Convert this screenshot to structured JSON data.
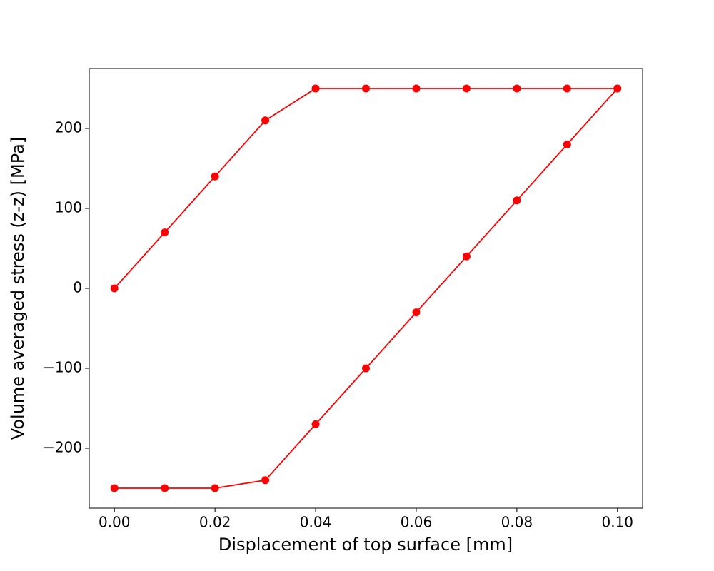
{
  "chart_data": {
    "type": "line",
    "xlabel": "Displacement of top surface [mm]",
    "ylabel": "Volume averaged stress (z-z) [MPa]",
    "x": [
      0,
      0.01,
      0.02,
      0.03,
      0.04,
      0.05,
      0.06,
      0.07,
      0.08,
      0.09,
      0.1,
      0.09,
      0.08,
      0.07,
      0.06,
      0.05,
      0.04,
      0.03,
      0.02,
      0.01,
      0
    ],
    "values": [
      0,
      70,
      140,
      210,
      250,
      250,
      250,
      250,
      250,
      250,
      250,
      180,
      110,
      40,
      -30,
      -100,
      -170,
      -240,
      -250,
      -250,
      -250
    ],
    "color": "#ff0000",
    "marker": "circle",
    "xlim": [
      -0.005,
      0.105
    ],
    "ylim": [
      -275,
      275
    ],
    "xticks": [
      {
        "value": 0,
        "label": "0.00"
      },
      {
        "value": 0.02,
        "label": "0.02"
      },
      {
        "value": 0.04,
        "label": "0.04"
      },
      {
        "value": 0.06,
        "label": "0.06"
      },
      {
        "value": 0.08,
        "label": "0.08"
      },
      {
        "value": 0.1,
        "label": "0.10"
      }
    ],
    "yticks": [
      {
        "value": -200,
        "label": "−200"
      },
      {
        "value": -100,
        "label": "−100"
      },
      0,
      100,
      200
    ],
    "grid": false
  }
}
